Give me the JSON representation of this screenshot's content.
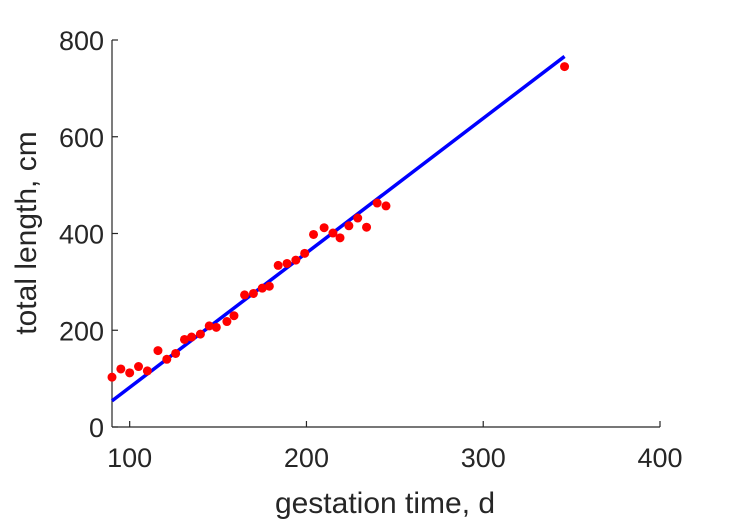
{
  "chart_data": {
    "type": "scatter",
    "title": "",
    "xlabel": "gestation time, d",
    "ylabel": "total length, cm",
    "xlim": [
      90,
      400
    ],
    "ylim": [
      0,
      800
    ],
    "xticks": [
      100,
      200,
      300,
      400
    ],
    "yticks": [
      0,
      200,
      400,
      600,
      800
    ],
    "grid": false,
    "legend": "none",
    "series": [
      {
        "kind": "points",
        "color": "#ff0000",
        "x": [
          90,
          95,
          100,
          105,
          110,
          116,
          121,
          126,
          131,
          135,
          140,
          145,
          149,
          155,
          159,
          165,
          170,
          175,
          179,
          184,
          189,
          194,
          199,
          204,
          210,
          215,
          219,
          224,
          229,
          234,
          240,
          245,
          346
        ],
        "y": [
          103,
          120,
          112,
          125,
          116,
          158,
          140,
          152,
          181,
          186,
          192,
          209,
          206,
          218,
          230,
          273,
          276,
          287,
          291,
          334,
          338,
          345,
          359,
          398,
          412,
          401,
          391,
          416,
          432,
          413,
          463,
          457,
          745
        ]
      },
      {
        "kind": "fit-line",
        "color": "#0000ff",
        "x": [
          90,
          346
        ],
        "y": [
          54,
          766
        ]
      }
    ]
  }
}
